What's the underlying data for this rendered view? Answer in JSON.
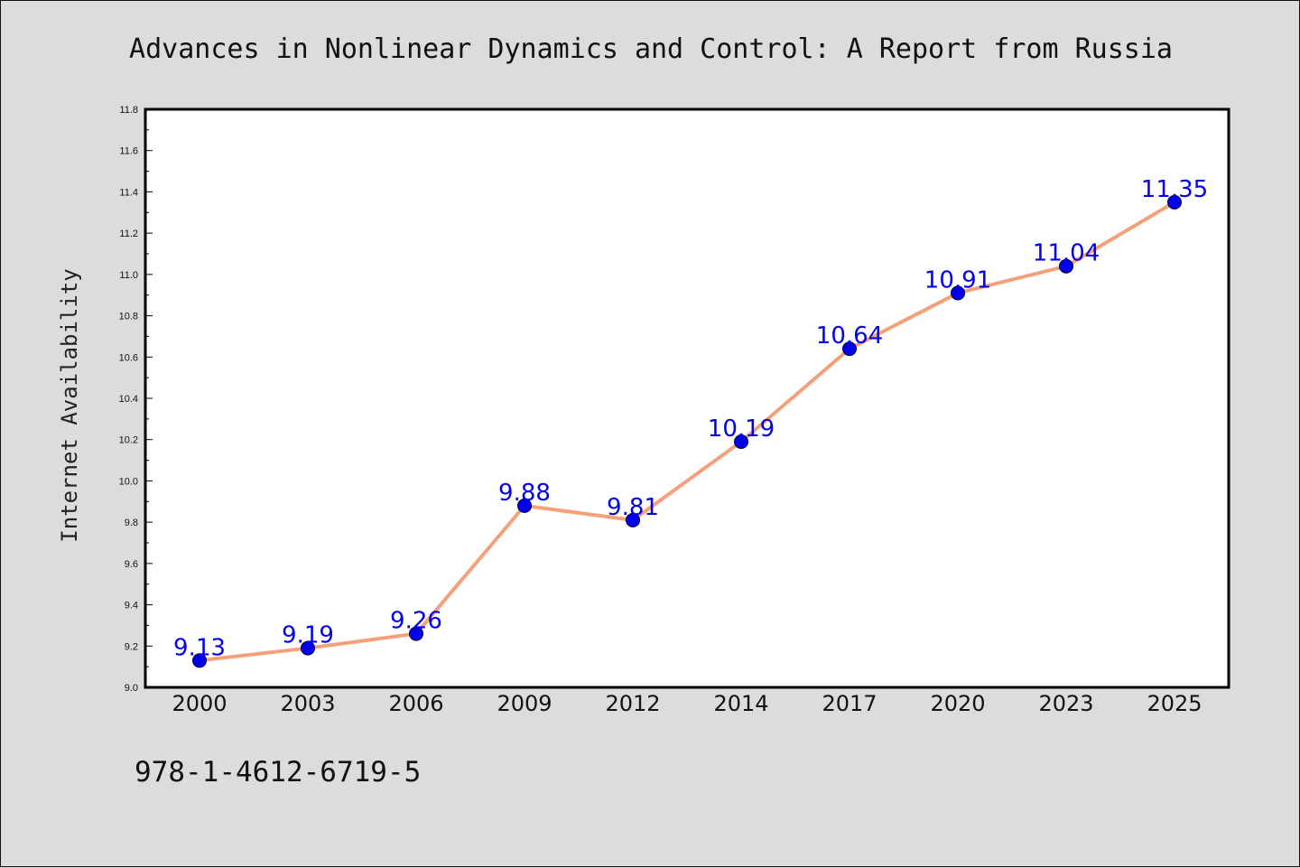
{
  "page": {
    "background": "#dcdcdc"
  },
  "footer_text": "978-1-4612-6719-5",
  "chart_data": {
    "type": "line",
    "title": "Advances in Nonlinear Dynamics and Control: A Report from Russia",
    "xlabel": "",
    "ylabel": "Internet Availability",
    "categories": [
      "2000",
      "2003",
      "2006",
      "2009",
      "2012",
      "2014",
      "2017",
      "2020",
      "2023",
      "2025"
    ],
    "series": [
      {
        "values": [
          9.13,
          9.19,
          9.26,
          9.88,
          9.81,
          10.19,
          10.64,
          10.91,
          11.04,
          11.35
        ],
        "data_labels": [
          "9.13",
          "9.19",
          "9.26",
          "9.88",
          "9.81",
          "10.19",
          "10.64",
          "10.91",
          "11.04",
          "11.35"
        ],
        "line_color": "#f5a07a",
        "marker_color": "#0000ee",
        "label_color": "#0000ee"
      }
    ],
    "ylim": [
      9.0,
      11.8
    ],
    "yticks": [
      "9.0",
      "9.2",
      "9.4",
      "9.6",
      "9.8",
      "10.0",
      "10.2",
      "10.4",
      "10.6",
      "10.8",
      "11.0",
      "11.2",
      "11.4",
      "11.6",
      "11.8"
    ],
    "grid": false,
    "legend": "none",
    "plot_background": "#ffffff"
  }
}
